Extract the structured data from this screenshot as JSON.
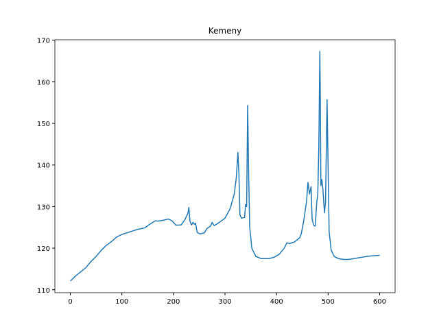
{
  "chart_data": {
    "type": "line",
    "title": "Kemeny",
    "color": "#1f77b4",
    "x": [
      0,
      10,
      20,
      30,
      40,
      50,
      60,
      70,
      80,
      90,
      100,
      110,
      120,
      130,
      145,
      150,
      160,
      165,
      170,
      180,
      190,
      197,
      205,
      215,
      222,
      228,
      230,
      232,
      235,
      238,
      241,
      243,
      246,
      252,
      260,
      265,
      272,
      275,
      279,
      284,
      290,
      300,
      310,
      318,
      322,
      325,
      327,
      329,
      332,
      338,
      340,
      342,
      344,
      346,
      348,
      352,
      360,
      370,
      385,
      395,
      405,
      415,
      420,
      425,
      435,
      445,
      448,
      452,
      458,
      461,
      464,
      467,
      469,
      472,
      475,
      478,
      480,
      482,
      484,
      485,
      486,
      488,
      490,
      493,
      495,
      498,
      500,
      502,
      506,
      512,
      520,
      530,
      540,
      550,
      560,
      570,
      580,
      590,
      600
    ],
    "values": [
      112.1,
      113.3,
      114.3,
      115.3,
      116.8,
      118.0,
      119.5,
      120.7,
      121.6,
      122.7,
      123.3,
      123.7,
      124.1,
      124.5,
      124.9,
      125.4,
      126.2,
      126.6,
      126.5,
      126.7,
      127.0,
      126.6,
      125.5,
      125.6,
      126.8,
      128.4,
      129.8,
      126.5,
      125.6,
      126.2,
      125.7,
      126.0,
      123.8,
      123.4,
      123.7,
      124.7,
      125.3,
      126.2,
      125.4,
      125.8,
      126.3,
      127.2,
      129.5,
      133.0,
      137.0,
      143.0,
      138.0,
      128.0,
      127.2,
      127.4,
      130.5,
      130.0,
      154.3,
      137.0,
      125.0,
      120.0,
      118.0,
      117.5,
      117.5,
      117.8,
      118.5,
      120.0,
      121.3,
      121.1,
      121.5,
      122.5,
      123.5,
      126.0,
      131.0,
      135.8,
      133.0,
      134.8,
      127.0,
      125.5,
      125.3,
      131.0,
      132.8,
      144.0,
      167.3,
      155.0,
      135.0,
      136.5,
      134.0,
      128.5,
      131.0,
      155.7,
      140.0,
      124.0,
      119.5,
      118.0,
      117.5,
      117.3,
      117.3,
      117.5,
      117.7,
      117.9,
      118.1,
      118.2,
      118.3
    ],
    "xlim": [
      -30,
      630
    ],
    "ylim": [
      109.3,
      170.1
    ],
    "xticks": [
      0,
      100,
      200,
      300,
      400,
      500,
      600
    ],
    "yticks": [
      110,
      120,
      130,
      140,
      150,
      160,
      170
    ]
  }
}
